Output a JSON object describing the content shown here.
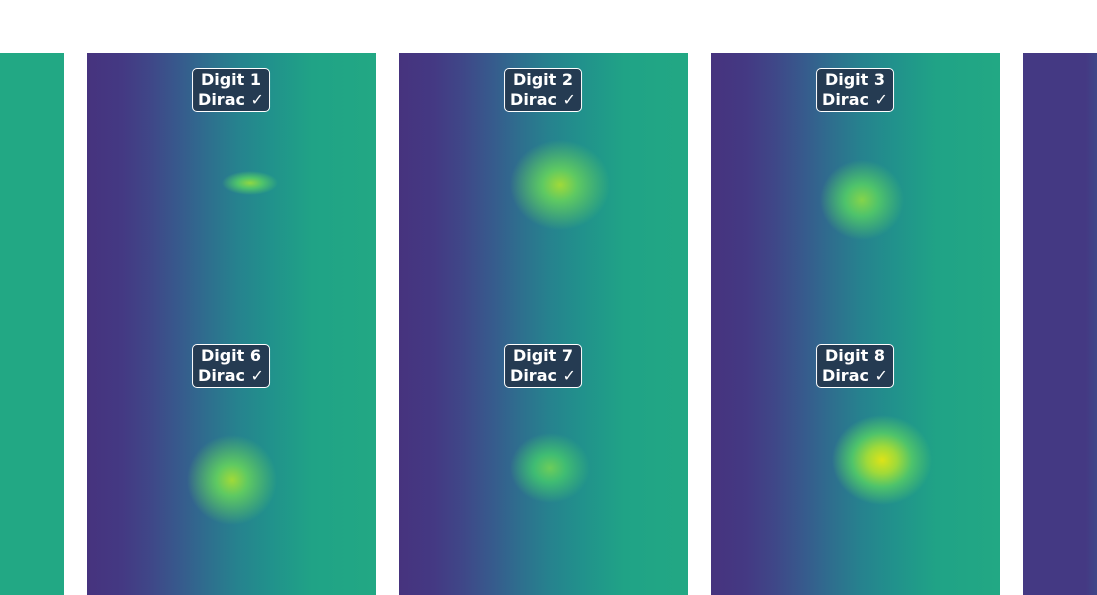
{
  "labels": [
    {
      "line1": "Digit 1",
      "line2": "Dirac ✓"
    },
    {
      "line1": "Digit 2",
      "line2": "Dirac ✓"
    },
    {
      "line1": "Digit 3",
      "line2": "Dirac ✓"
    },
    {
      "line1": "Digit 6",
      "line2": "Dirac ✓"
    },
    {
      "line1": "Digit 7",
      "line2": "Dirac ✓"
    },
    {
      "line1": "Digit 8",
      "line2": "Dirac ✓"
    }
  ]
}
